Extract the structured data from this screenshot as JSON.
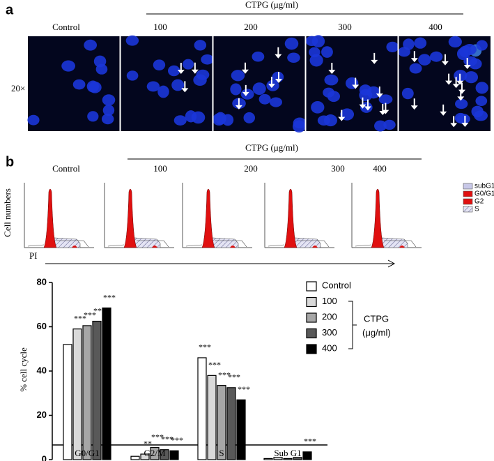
{
  "panel_a": {
    "label": "a",
    "group_label": "CTPG (μg/ml)",
    "columns": [
      "Control",
      "100",
      "200",
      "300",
      "400"
    ],
    "magnification": "20×"
  },
  "panel_b": {
    "label": "b",
    "group_label": "CTPG (μg/ml)",
    "columns": [
      "Control",
      "100",
      "200",
      "300",
      "400"
    ],
    "y_label": "Cell numbers",
    "x_label": "PI",
    "legend": [
      "subG1",
      "G0/G1",
      "G2",
      "S"
    ]
  },
  "chart_data": {
    "type": "bar",
    "ylabel": "% cell cycle",
    "categories": [
      "G0/G1",
      "G2/M",
      "S",
      "Sub G1"
    ],
    "series": [
      {
        "name": "Control",
        "color": "#ffffff",
        "values": [
          52,
          1.5,
          46,
          0.5
        ],
        "annotations": [
          null,
          null,
          "***",
          null
        ]
      },
      {
        "name": "100",
        "color": "#d9d9d9",
        "values": [
          59,
          2.5,
          38,
          1
        ],
        "annotations": [
          "***",
          "**",
          "***",
          null
        ]
      },
      {
        "name": "200",
        "color": "#a6a6a6",
        "values": [
          60.5,
          5.5,
          33.5,
          0.5
        ],
        "annotations": [
          "***",
          "***",
          "***",
          null
        ]
      },
      {
        "name": "300",
        "color": "#595959",
        "values": [
          62.5,
          4.5,
          32.5,
          1
        ],
        "annotations": [
          "***",
          "***",
          "***",
          null
        ]
      },
      {
        "name": "400",
        "color": "#000000",
        "values": [
          68.5,
          4,
          27,
          3.5
        ],
        "annotations": [
          "***",
          "***",
          "***",
          "***"
        ]
      }
    ],
    "ylim": [
      0,
      80
    ],
    "yticks": [
      0,
      20,
      40,
      60,
      80
    ],
    "legend_group": "CTPG",
    "legend_group_unit": "(μg/ml)"
  }
}
